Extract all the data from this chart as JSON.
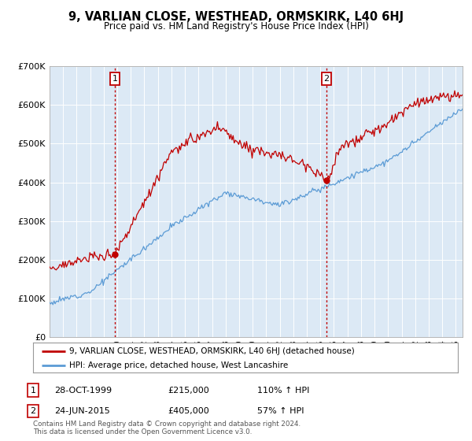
{
  "title": "9, VARLIAN CLOSE, WESTHEAD, ORMSKIRK, L40 6HJ",
  "subtitle": "Price paid vs. HM Land Registry's House Price Index (HPI)",
  "hpi_color": "#5b9bd5",
  "property_color": "#c00000",
  "vline_color": "#c00000",
  "transaction1_t": 1999.833,
  "transaction1_price": 215000,
  "transaction2_t": 2015.458,
  "transaction2_price": 405000,
  "legend_property": "9, VARLIAN CLOSE, WESTHEAD, ORMSKIRK, L40 6HJ (detached house)",
  "legend_hpi": "HPI: Average price, detached house, West Lancashire",
  "table_row1": [
    "1",
    "28-OCT-1999",
    "£215,000",
    "110% ↑ HPI"
  ],
  "table_row2": [
    "2",
    "24-JUN-2015",
    "£405,000",
    "57% ↑ HPI"
  ],
  "footer": "Contains HM Land Registry data © Crown copyright and database right 2024.\nThis data is licensed under the Open Government Licence v3.0.",
  "background_color": "#ffffff",
  "chart_bg": "#dce9f5",
  "grid_color": "#ffffff"
}
